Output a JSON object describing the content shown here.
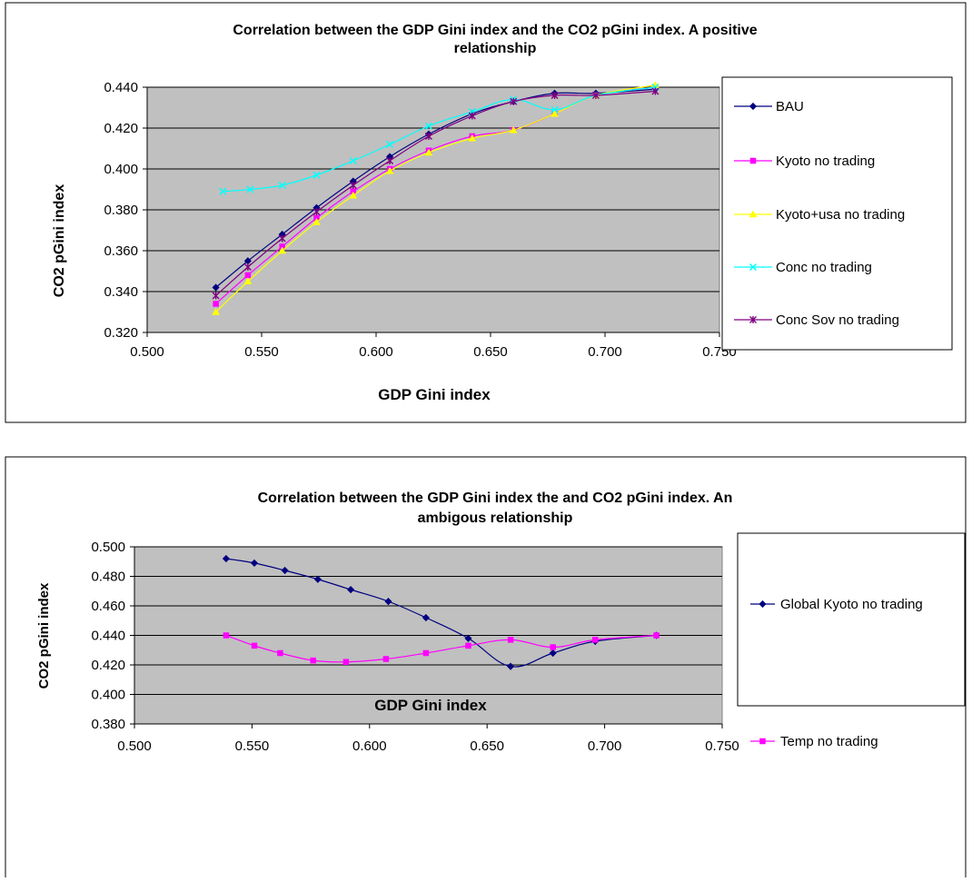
{
  "chart_data": [
    {
      "type": "line",
      "title_line1": "Correlation between the GDP Gini index and the CO2 pGini index. A positive",
      "title_line2": "relationship",
      "xlabel": "GDP Gini index",
      "ylabel": "CO2 pGini index",
      "xlim": [
        0.5,
        0.75
      ],
      "ylim": [
        0.32,
        0.44
      ],
      "xticks": [
        "0.500",
        "0.550",
        "0.600",
        "0.650",
        "0.700",
        "0.750"
      ],
      "yticks": [
        "0.320",
        "0.340",
        "0.360",
        "0.380",
        "0.400",
        "0.420",
        "0.440"
      ],
      "grid": "horizontal",
      "legend_position": "right",
      "series": [
        {
          "name": "BAU",
          "color": "#000080",
          "marker": "diamond",
          "x": [
            0.53,
            0.544,
            0.559,
            0.574,
            0.59,
            0.606,
            0.623,
            0.642,
            0.66,
            0.678,
            0.696,
            0.722
          ],
          "y": [
            0.342,
            0.355,
            0.368,
            0.381,
            0.394,
            0.406,
            0.417,
            0.427,
            0.433,
            0.437,
            0.437,
            0.439
          ]
        },
        {
          "name": "Kyoto no trading",
          "color": "#FF00FF",
          "marker": "square",
          "x": [
            0.53,
            0.544,
            0.559,
            0.574,
            0.59,
            0.606,
            0.623,
            0.642,
            0.66,
            0.678,
            0.696,
            0.722
          ],
          "y": [
            0.334,
            0.348,
            0.362,
            0.376,
            0.389,
            0.4,
            0.409,
            0.416,
            0.419,
            0.427,
            0.436,
            0.44
          ]
        },
        {
          "name": "Kyoto+usa no trading",
          "color": "#FFFF00",
          "marker": "triangle",
          "x": [
            0.53,
            0.544,
            0.559,
            0.574,
            0.59,
            0.606,
            0.623,
            0.642,
            0.66,
            0.678,
            0.696,
            0.722
          ],
          "y": [
            0.33,
            0.345,
            0.36,
            0.374,
            0.387,
            0.399,
            0.408,
            0.415,
            0.419,
            0.427,
            0.436,
            0.441
          ]
        },
        {
          "name": "Conc no trading",
          "color": "#00FFFF",
          "marker": "x",
          "x": [
            0.533,
            0.545,
            0.559,
            0.574,
            0.59,
            0.606,
            0.623,
            0.642,
            0.66,
            0.678,
            0.696,
            0.722
          ],
          "y": [
            0.389,
            0.39,
            0.392,
            0.397,
            0.404,
            0.412,
            0.421,
            0.428,
            0.434,
            0.429,
            0.436,
            0.44
          ]
        },
        {
          "name": "Conc Sov no trading",
          "color": "#800080",
          "marker": "star",
          "x": [
            0.53,
            0.544,
            0.559,
            0.574,
            0.59,
            0.606,
            0.623,
            0.642,
            0.66,
            0.678,
            0.696,
            0.722
          ],
          "y": [
            0.338,
            0.352,
            0.366,
            0.379,
            0.392,
            0.404,
            0.416,
            0.426,
            0.433,
            0.436,
            0.436,
            0.438
          ]
        }
      ]
    },
    {
      "type": "line",
      "title_line1": "Correlation between the GDP Gini index the and CO2 pGini index.  An",
      "title_line2": "ambigous relationship",
      "xlabel": "GDP Gini index",
      "ylabel": "CO2 pGini index",
      "xlim": [
        0.5,
        0.75
      ],
      "ylim": [
        0.38,
        0.5
      ],
      "xticks": [
        "0.500",
        "0.550",
        "0.600",
        "0.650",
        "0.700",
        "0.750"
      ],
      "yticks": [
        "0.380",
        "0.400",
        "0.420",
        "0.440",
        "0.460",
        "0.480",
        "0.500"
      ],
      "grid": "horizontal",
      "legend_position": "right",
      "series": [
        {
          "name": "Global Kyoto no trading",
          "color": "#000080",
          "marker": "diamond",
          "x": [
            0.539,
            0.551,
            0.564,
            0.578,
            0.592,
            0.608,
            0.624,
            0.642,
            0.66,
            0.678,
            0.696,
            0.722
          ],
          "y": [
            0.492,
            0.489,
            0.484,
            0.478,
            0.471,
            0.463,
            0.452,
            0.438,
            0.419,
            0.428,
            0.436,
            0.44
          ]
        },
        {
          "name": "Temp no trading",
          "color": "#FF00FF",
          "marker": "square",
          "x": [
            0.539,
            0.551,
            0.562,
            0.576,
            0.59,
            0.607,
            0.624,
            0.642,
            0.66,
            0.678,
            0.696,
            0.722
          ],
          "y": [
            0.44,
            0.433,
            0.428,
            0.423,
            0.422,
            0.424,
            0.428,
            0.433,
            0.437,
            0.432,
            0.437,
            0.44
          ]
        }
      ]
    }
  ]
}
